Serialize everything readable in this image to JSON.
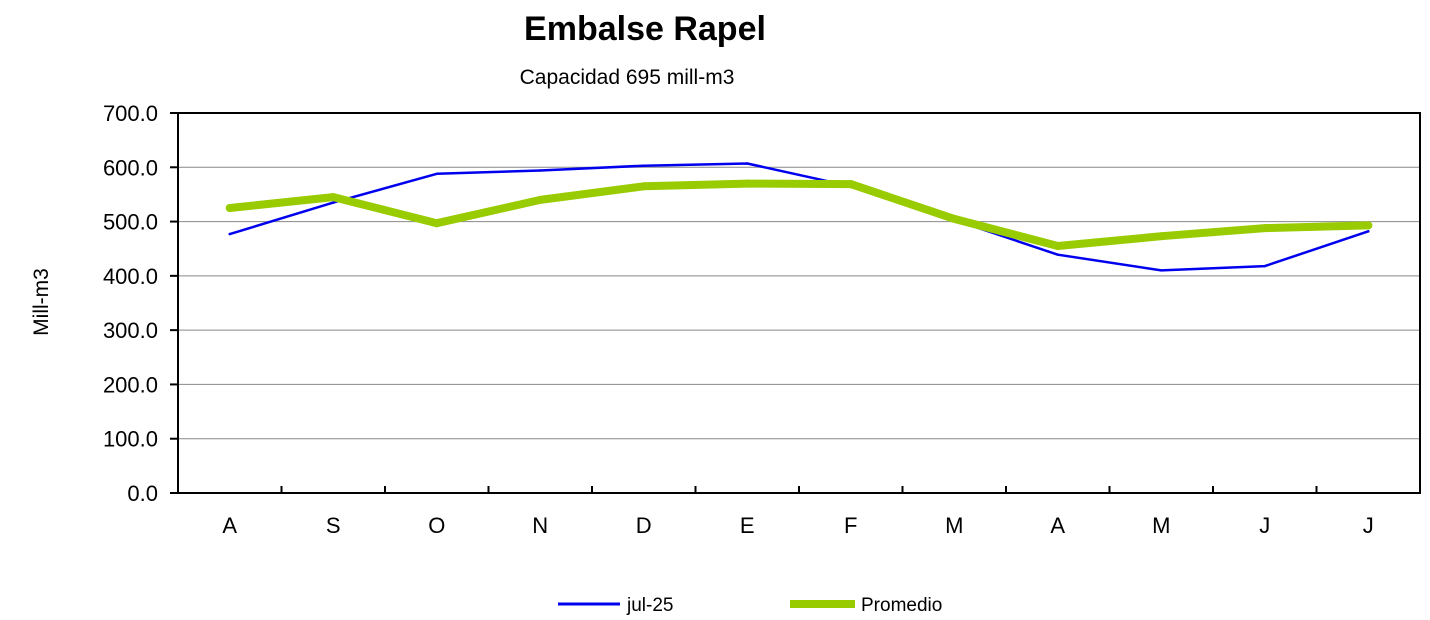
{
  "chart_data": {
    "type": "line",
    "title": "Embalse Rapel",
    "subtitle": "Capacidad 695 mill-m3",
    "ylabel": "Mill-m3",
    "xlabel": "",
    "categories": [
      "A",
      "S",
      "O",
      "N",
      "D",
      "E",
      "F",
      "M",
      "A",
      "M",
      "J",
      "J"
    ],
    "ylim": [
      0,
      700
    ],
    "yticks": [
      "0.0",
      "100.0",
      "200.0",
      "300.0",
      "400.0",
      "500.0",
      "600.0",
      "700.0"
    ],
    "grid": true,
    "legend_position": "bottom",
    "series": [
      {
        "name": "jul-25",
        "color": "#0000ee",
        "line_width": "thin",
        "values": [
          477,
          535,
          588,
          594,
          603,
          607,
          565,
          503,
          439,
          410,
          418,
          482
        ]
      },
      {
        "name": "Promedio",
        "color": "#99cc00",
        "line_width": "thick",
        "values": [
          525,
          545,
          497,
          540,
          565,
          570,
          569,
          505,
          455,
          473,
          488,
          493
        ]
      }
    ]
  }
}
